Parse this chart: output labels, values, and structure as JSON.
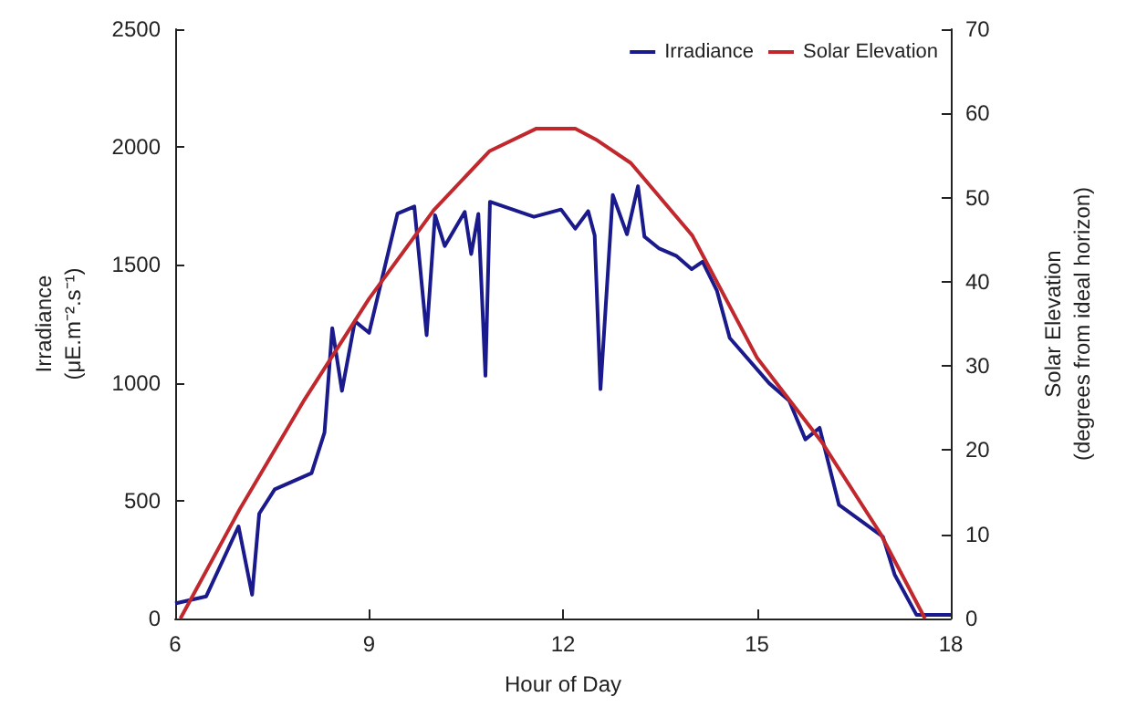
{
  "chart_data": {
    "type": "line",
    "xlabel": "Hour of Day",
    "ylabel": "Irradiance\n(μE.m⁻².s⁻¹)",
    "y2label": "Solar Elevation\n(degrees from ideal horizon)",
    "xlim": [
      6,
      18
    ],
    "xticks": [
      6,
      9,
      12,
      15,
      18
    ],
    "ylim": [
      0,
      2500
    ],
    "yticks": [
      0,
      500,
      1000,
      1500,
      2000,
      2500
    ],
    "y2lim": [
      0,
      70
    ],
    "y2ticks": [
      0,
      10,
      20,
      30,
      40,
      50,
      60,
      70
    ],
    "legend": "top right",
    "grid": false,
    "marker": "none",
    "line_style": "solid",
    "series": [
      {
        "name": "Irradiance",
        "color": "#1a1a8c",
        "x": [
          6,
          6.48,
          6.98,
          7.19,
          7.3,
          7.54,
          8.11,
          8.31,
          8.43,
          8.58,
          8.78,
          9,
          9.44,
          9.7,
          9.89,
          10.02,
          10.17,
          10.48,
          10.58,
          10.69,
          10.8,
          10.87,
          11.55,
          11.97,
          12.19,
          12.39,
          12.49,
          12.58,
          12.77,
          12.99,
          13.16,
          13.26,
          13.48,
          13.75,
          13.99,
          14.16,
          14.38,
          14.58,
          15.19,
          15.5,
          15.75,
          15.97,
          16.27,
          16.95,
          17.13,
          17.47,
          18
        ],
        "values": [
          64,
          94,
          391,
          101,
          445,
          548,
          617,
          789,
          1232,
          966,
          1261,
          1212,
          1718,
          1748,
          1202,
          1711,
          1580,
          1725,
          1546,
          1716,
          1030,
          1768,
          1704,
          1735,
          1654,
          1728,
          1625,
          973,
          1797,
          1630,
          1834,
          1620,
          1571,
          1539,
          1482,
          1514,
          1392,
          1190,
          998,
          924,
          760,
          809,
          482,
          347,
          187,
          15,
          15
        ]
      },
      {
        "name": "Solar Elevation",
        "color": "#c0282d",
        "axis": "y2",
        "x": [
          6.08,
          7,
          8,
          9,
          10,
          10.86,
          11.59,
          12.19,
          12.53,
          13.05,
          14,
          15,
          16,
          16.91,
          17.6
        ],
        "values": [
          0,
          13,
          26,
          38,
          48.5,
          55.5,
          58.2,
          58.2,
          56.8,
          54.1,
          45.5,
          31,
          21,
          10.1,
          0
        ]
      }
    ]
  }
}
